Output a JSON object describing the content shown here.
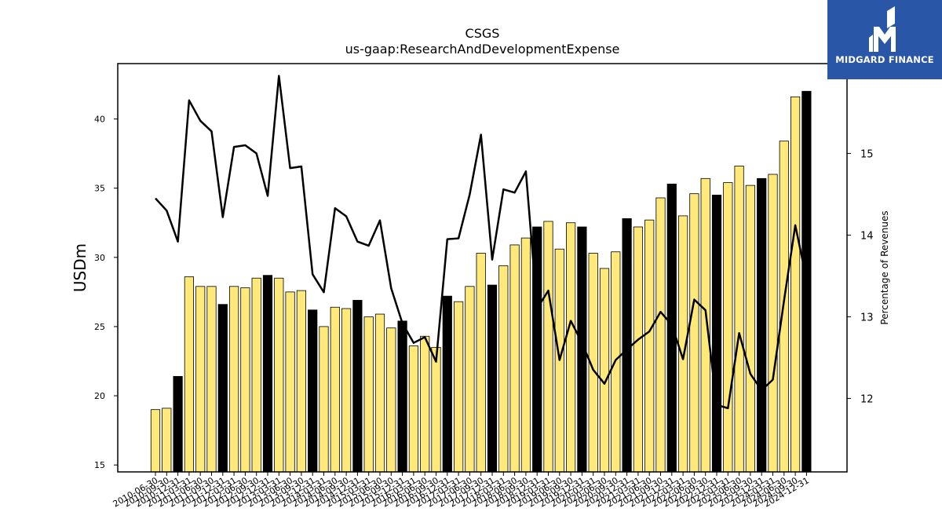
{
  "brand": {
    "name": "MIDGARD FINANCE",
    "bg_color": "#2a56a8",
    "icon": "midgard-logo-icon"
  },
  "chart_data": {
    "type": "bar",
    "title": "CSGS",
    "subtitle": "us-gaap:ResearchAndDevelopmentExpense",
    "ylabel": "USDm",
    "y2label": "Percentage of Revenues",
    "ylim": [
      14.5,
      44
    ],
    "y2lim": [
      11.1,
      16.1
    ],
    "yticks": [
      15,
      20,
      25,
      30,
      35,
      40
    ],
    "y2ticks": [
      12,
      13,
      14,
      15
    ],
    "colors": {
      "quarter": "#ffe97a",
      "year_end": "#000000",
      "line": "#000000"
    },
    "categories": [
      "2010-06-30",
      "2010-09-30",
      "2010-12-31",
      "2011-03-31",
      "2011-06-30",
      "2011-09-30",
      "2011-12-31",
      "2012-03-31",
      "2012-06-30",
      "2012-09-30",
      "2012-12-31",
      "2013-03-31",
      "2013-06-30",
      "2013-09-30",
      "2013-12-31",
      "2014-03-31",
      "2014-06-30",
      "2014-09-30",
      "2014-12-31",
      "2015-03-31",
      "2015-06-30",
      "2015-09-30",
      "2015-12-31",
      "2016-03-31",
      "2016-06-30",
      "2016-09-30",
      "2016-12-31",
      "2017-03-31",
      "2017-06-30",
      "2017-09-30",
      "2017-12-31",
      "2018-03-31",
      "2018-06-30",
      "2018-09-30",
      "2018-12-31",
      "2019-03-31",
      "2019-06-30",
      "2019-09-30",
      "2019-12-31",
      "2020-03-31",
      "2020-06-30",
      "2020-09-30",
      "2020-12-31",
      "2021-03-31",
      "2021-06-30",
      "2021-09-30",
      "2021-12-31",
      "2022-03-31",
      "2022-06-30",
      "2022-09-30",
      "2022-12-31",
      "2023-03-31",
      "2023-06-30",
      "2023-09-30",
      "2023-12-31",
      "2024-03-31",
      "2024-06-30",
      "2024-09-30",
      "2024-12-31"
    ],
    "series": [
      {
        "kind": "bar",
        "values": [
          19.0,
          19.1,
          21.4,
          28.6,
          27.9,
          27.9,
          26.6,
          27.9,
          27.8,
          28.5,
          28.7,
          28.5,
          27.5,
          27.6,
          26.2,
          25.0,
          26.4,
          26.3,
          26.9,
          25.7,
          25.9,
          24.9,
          25.4,
          23.6,
          24.3,
          23.5,
          27.2,
          26.8,
          27.9,
          30.3,
          28.0,
          29.4,
          30.9,
          31.4,
          32.2,
          32.6,
          30.6,
          32.5,
          32.2,
          30.3,
          29.2,
          30.4,
          32.8,
          32.2,
          32.7,
          34.3,
          35.3,
          33.0,
          34.6,
          35.7,
          34.5,
          35.4,
          36.6,
          35.2,
          35.7,
          36.0,
          38.4,
          41.6,
          42.0
        ]
      },
      {
        "kind": "line",
        "axis": "right",
        "values": [
          14.45,
          14.3,
          13.92,
          15.65,
          15.4,
          15.27,
          14.22,
          15.08,
          15.1,
          15.0,
          14.48,
          15.95,
          14.82,
          14.84,
          13.52,
          13.3,
          14.33,
          14.23,
          13.92,
          13.87,
          14.18,
          13.35,
          12.92,
          12.68,
          12.75,
          12.45,
          13.95,
          13.96,
          14.5,
          15.23,
          13.7,
          14.56,
          14.52,
          14.78,
          13.1,
          13.32,
          12.47,
          12.95,
          12.68,
          12.35,
          12.18,
          12.47,
          12.6,
          12.72,
          12.82,
          13.06,
          12.9,
          12.48,
          13.21,
          13.08,
          11.92,
          11.88,
          12.8,
          12.3,
          12.1,
          12.23,
          13.2,
          14.12,
          13.46
        ]
      }
    ]
  }
}
